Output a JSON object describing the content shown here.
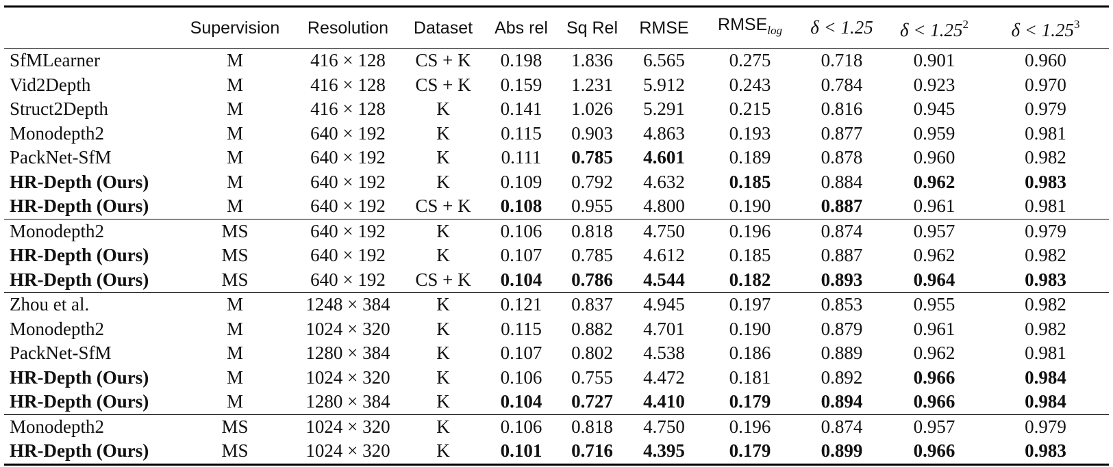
{
  "table": {
    "headers": {
      "method": "",
      "supervision": "Supervision",
      "resolution": "Resolution",
      "dataset": "Dataset",
      "abs_rel": "Abs rel",
      "sq_rel": "Sq Rel",
      "rmse": "RMSE",
      "rmse_log_main": "RMSE",
      "rmse_log_sub": "log",
      "d1": "δ < 1.25",
      "d2_main": "δ < 1.25",
      "d2_sup": "2",
      "d3_main": "δ < 1.25",
      "d3_sup": "3"
    },
    "groups": [
      [
        {
          "method": "SfMLearner",
          "sup": "M",
          "res": "416 × 128",
          "ds": "CS + K",
          "v": [
            "0.198",
            "1.836",
            "6.565",
            "0.275",
            "0.718",
            "0.901",
            "0.960"
          ],
          "b": []
        },
        {
          "method": "Vid2Depth",
          "sup": "M",
          "res": "416 × 128",
          "ds": "CS + K",
          "v": [
            "0.159",
            "1.231",
            "5.912",
            "0.243",
            "0.784",
            "0.923",
            "0.970"
          ],
          "b": []
        },
        {
          "method": "Struct2Depth",
          "sup": "M",
          "res": "416 × 128",
          "ds": "K",
          "v": [
            "0.141",
            "1.026",
            "5.291",
            "0.215",
            "0.816",
            "0.945",
            "0.979"
          ],
          "b": []
        },
        {
          "method": "Monodepth2",
          "sup": "M",
          "res": "640 × 192",
          "ds": "K",
          "v": [
            "0.115",
            "0.903",
            "4.863",
            "0.193",
            "0.877",
            "0.959",
            "0.981"
          ],
          "b": []
        },
        {
          "method": "PackNet-SfM",
          "sup": "M",
          "res": "640 × 192",
          "ds": "K",
          "v": [
            "0.111",
            "0.785",
            "4.601",
            "0.189",
            "0.878",
            "0.960",
            "0.982"
          ],
          "b": [
            1,
            2
          ]
        },
        {
          "method": "HR-Depth (Ours)",
          "bm": true,
          "sup": "M",
          "res": "640 × 192",
          "ds": "K",
          "v": [
            "0.109",
            "0.792",
            "4.632",
            "0.185",
            "0.884",
            "0.962",
            "0.983"
          ],
          "b": [
            3,
            5,
            6
          ]
        },
        {
          "method": "HR-Depth (Ours)",
          "bm": true,
          "sup": "M",
          "res": "640 × 192",
          "ds": "CS + K",
          "v": [
            "0.108",
            "0.955",
            "4.800",
            "0.190",
            "0.887",
            "0.961",
            "0.981"
          ],
          "b": [
            0,
            4
          ]
        }
      ],
      [
        {
          "method": "Monodepth2",
          "sup": "MS",
          "res": "640 × 192",
          "ds": "K",
          "v": [
            "0.106",
            "0.818",
            "4.750",
            "0.196",
            "0.874",
            "0.957",
            "0.979"
          ],
          "b": []
        },
        {
          "method": "HR-Depth (Ours)",
          "bm": true,
          "sup": "MS",
          "res": "640 × 192",
          "ds": "K",
          "v": [
            "0.107",
            "0.785",
            "4.612",
            "0.185",
            "0.887",
            "0.962",
            "0.982"
          ],
          "b": []
        },
        {
          "method": "HR-Depth (Ours)",
          "bm": true,
          "sup": "MS",
          "res": "640 × 192",
          "ds": "CS + K",
          "v": [
            "0.104",
            "0.786",
            "4.544",
            "0.182",
            "0.893",
            "0.964",
            "0.983"
          ],
          "b": [
            0,
            1,
            2,
            3,
            4,
            5,
            6
          ]
        }
      ],
      [
        {
          "method": "Zhou et al.",
          "sup": "M",
          "res": "1248 × 384",
          "ds": "K",
          "v": [
            "0.121",
            "0.837",
            "4.945",
            "0.197",
            "0.853",
            "0.955",
            "0.982"
          ],
          "b": []
        },
        {
          "method": "Monodepth2",
          "sup": "M",
          "res": "1024 × 320",
          "ds": "K",
          "v": [
            "0.115",
            "0.882",
            "4.701",
            "0.190",
            "0.879",
            "0.961",
            "0.982"
          ],
          "b": []
        },
        {
          "method": "PackNet-SfM",
          "sup": "M",
          "res": "1280 × 384",
          "ds": "K",
          "v": [
            "0.107",
            "0.802",
            "4.538",
            "0.186",
            "0.889",
            "0.962",
            "0.981"
          ],
          "b": []
        },
        {
          "method": "HR-Depth (Ours)",
          "bm": true,
          "sup": "M",
          "res": "1024 × 320",
          "ds": "K",
          "v": [
            "0.106",
            "0.755",
            "4.472",
            "0.181",
            "0.892",
            "0.966",
            "0.984"
          ],
          "b": [
            5,
            6
          ]
        },
        {
          "method": "HR-Depth (Ours)",
          "bm": true,
          "sup": "M",
          "res": "1280 × 384",
          "ds": "K",
          "v": [
            "0.104",
            "0.727",
            "4.410",
            "0.179",
            "0.894",
            "0.966",
            "0.984"
          ],
          "b": [
            0,
            1,
            2,
            3,
            4,
            5,
            6
          ]
        }
      ],
      [
        {
          "method": "Monodepth2",
          "sup": "MS",
          "res": "1024 × 320",
          "ds": "K",
          "v": [
            "0.106",
            "0.818",
            "4.750",
            "0.196",
            "0.874",
            "0.957",
            "0.979"
          ],
          "b": []
        },
        {
          "method": "HR-Depth (Ours)",
          "bm": true,
          "sup": "MS",
          "res": "1024 × 320",
          "ds": "K",
          "v": [
            "0.101",
            "0.716",
            "4.395",
            "0.179",
            "0.899",
            "0.966",
            "0.983"
          ],
          "b": [
            0,
            1,
            2,
            3,
            4,
            5,
            6
          ]
        }
      ]
    ]
  }
}
